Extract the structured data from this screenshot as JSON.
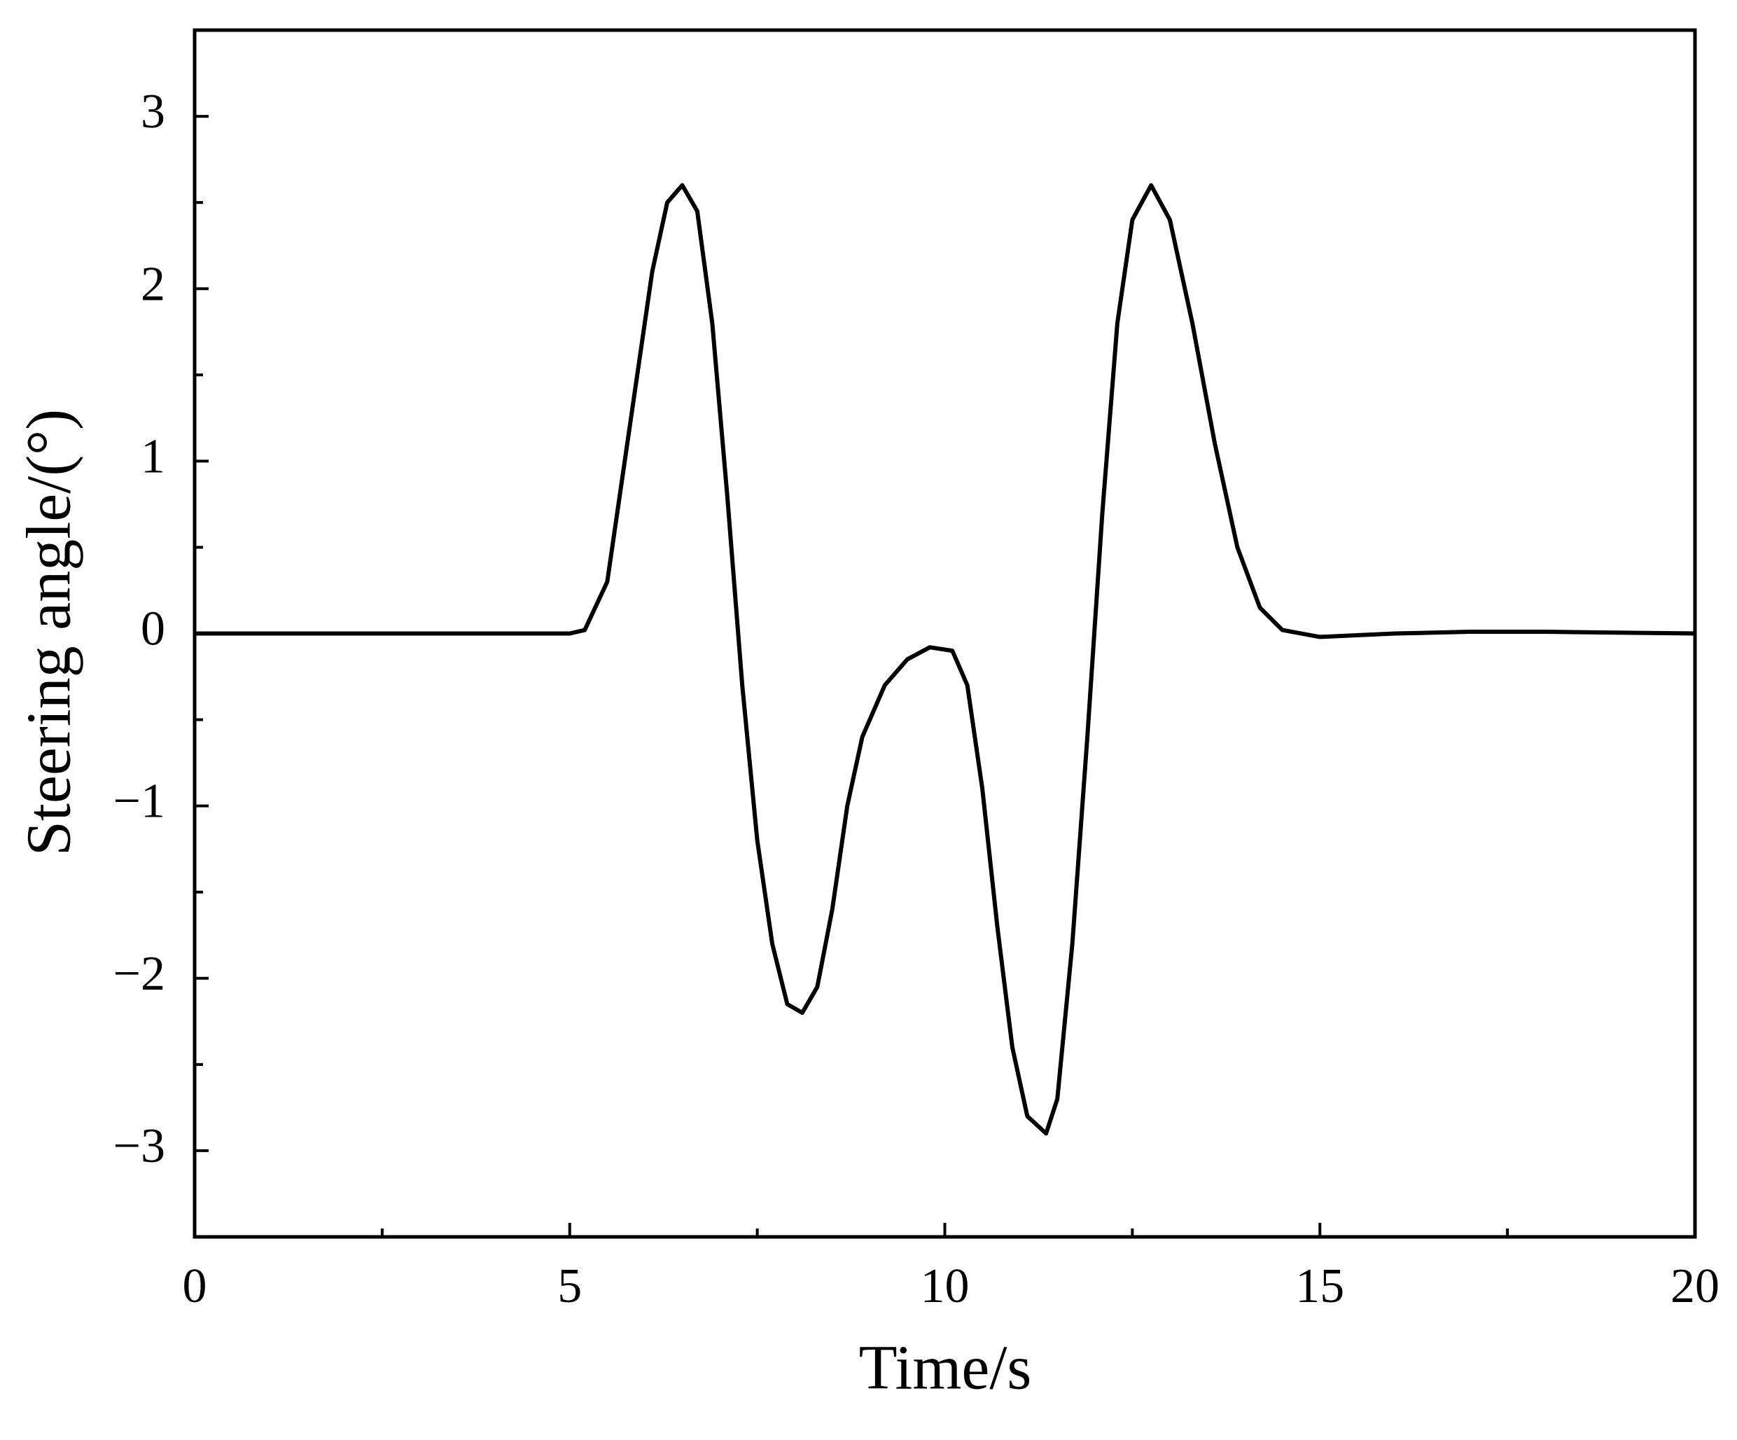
{
  "chart_data": {
    "type": "line",
    "xlabel": "Time/s",
    "ylabel": "Steering angle/(°)",
    "x": [
      0,
      5,
      5.2,
      5.5,
      5.8,
      6.1,
      6.3,
      6.5,
      6.7,
      6.9,
      7.1,
      7.3,
      7.5,
      7.7,
      7.9,
      8.1,
      8.3,
      8.5,
      8.7,
      8.9,
      9.2,
      9.5,
      9.8,
      10.1,
      10.3,
      10.5,
      10.7,
      10.9,
      11.1,
      11.35,
      11.5,
      11.7,
      11.9,
      12.1,
      12.3,
      12.5,
      12.75,
      13.0,
      13.3,
      13.6,
      13.9,
      14.2,
      14.5,
      15,
      16,
      17,
      18,
      20
    ],
    "series": [
      {
        "color": "#000000",
        "values": [
          0,
          0,
          0.02,
          0.3,
          1.2,
          2.1,
          2.5,
          2.6,
          2.45,
          1.8,
          0.8,
          -0.3,
          -1.2,
          -1.8,
          -2.15,
          -2.2,
          -2.05,
          -1.6,
          -1.0,
          -0.6,
          -0.3,
          -0.15,
          -0.08,
          -0.1,
          -0.3,
          -0.9,
          -1.7,
          -2.4,
          -2.8,
          -2.9,
          -2.7,
          -1.8,
          -0.6,
          0.7,
          1.8,
          2.4,
          2.6,
          2.4,
          1.8,
          1.1,
          0.5,
          0.15,
          0.02,
          -0.02,
          0,
          0.01,
          0.01,
          0
        ]
      }
    ],
    "xlim": [
      0,
      20
    ],
    "xticks": [
      0,
      5,
      10,
      15,
      20
    ],
    "xminor_ticks": [
      2.5,
      7.5,
      12.5,
      17.5
    ],
    "ylim": [
      -3.5,
      3.5
    ],
    "yticks": [
      {
        "value": -3,
        "label": "−3"
      },
      {
        "value": -2,
        "label": "−2"
      },
      {
        "value": -1,
        "label": "−1"
      },
      0,
      1,
      2,
      3
    ],
    "yminor_ticks": [
      -2.5,
      -1.5,
      -0.5,
      0.5,
      1.5,
      2.5
    ],
    "grid": false
  }
}
